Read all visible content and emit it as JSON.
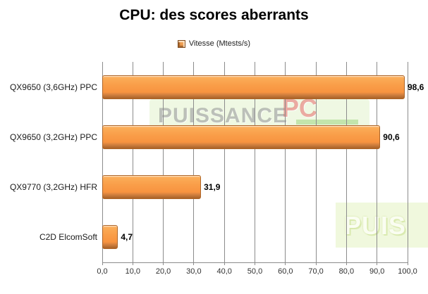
{
  "chart_data": {
    "type": "bar",
    "orientation": "horizontal",
    "title": "CPU: des scores aberrants",
    "legend": {
      "label": "Vitesse (Mtests/s)",
      "position": "top"
    },
    "categories": [
      "QX9650 (3,6GHz) PPC",
      "QX9650 (3,2GHz) PPC",
      "QX9770 (3,2GHz) HFR",
      "C2D ElcomSoft"
    ],
    "values": [
      98.6,
      90.6,
      31.9,
      4.7
    ],
    "value_labels": [
      "98,6",
      "90,6",
      "31,9",
      "4,7"
    ],
    "xlabel": "",
    "ylabel": "",
    "xlim": [
      0,
      100
    ],
    "xticks": [
      0,
      10,
      20,
      30,
      40,
      50,
      60,
      70,
      80,
      90,
      100
    ],
    "xtick_labels": [
      "0,0",
      "10,0",
      "20,0",
      "30,0",
      "40,0",
      "50,0",
      "60,0",
      "70,0",
      "80,0",
      "90,0",
      "100,0"
    ],
    "grid": "vertical-only",
    "legend_position": "top-center",
    "bar_color": "#F89440"
  },
  "watermarks": {
    "center_word1": "PUISSANCE",
    "center_word2": "PC",
    "corner_text": "PUIS"
  },
  "colors": {
    "bar_main": "#F89440",
    "bar_highlight": "#FDC991",
    "bar_shadow": "#A96127",
    "bar_border": "#AD6528",
    "gridline": "#8C8C8C",
    "title_text": "#000000",
    "label_text": "#1A1A1A"
  }
}
